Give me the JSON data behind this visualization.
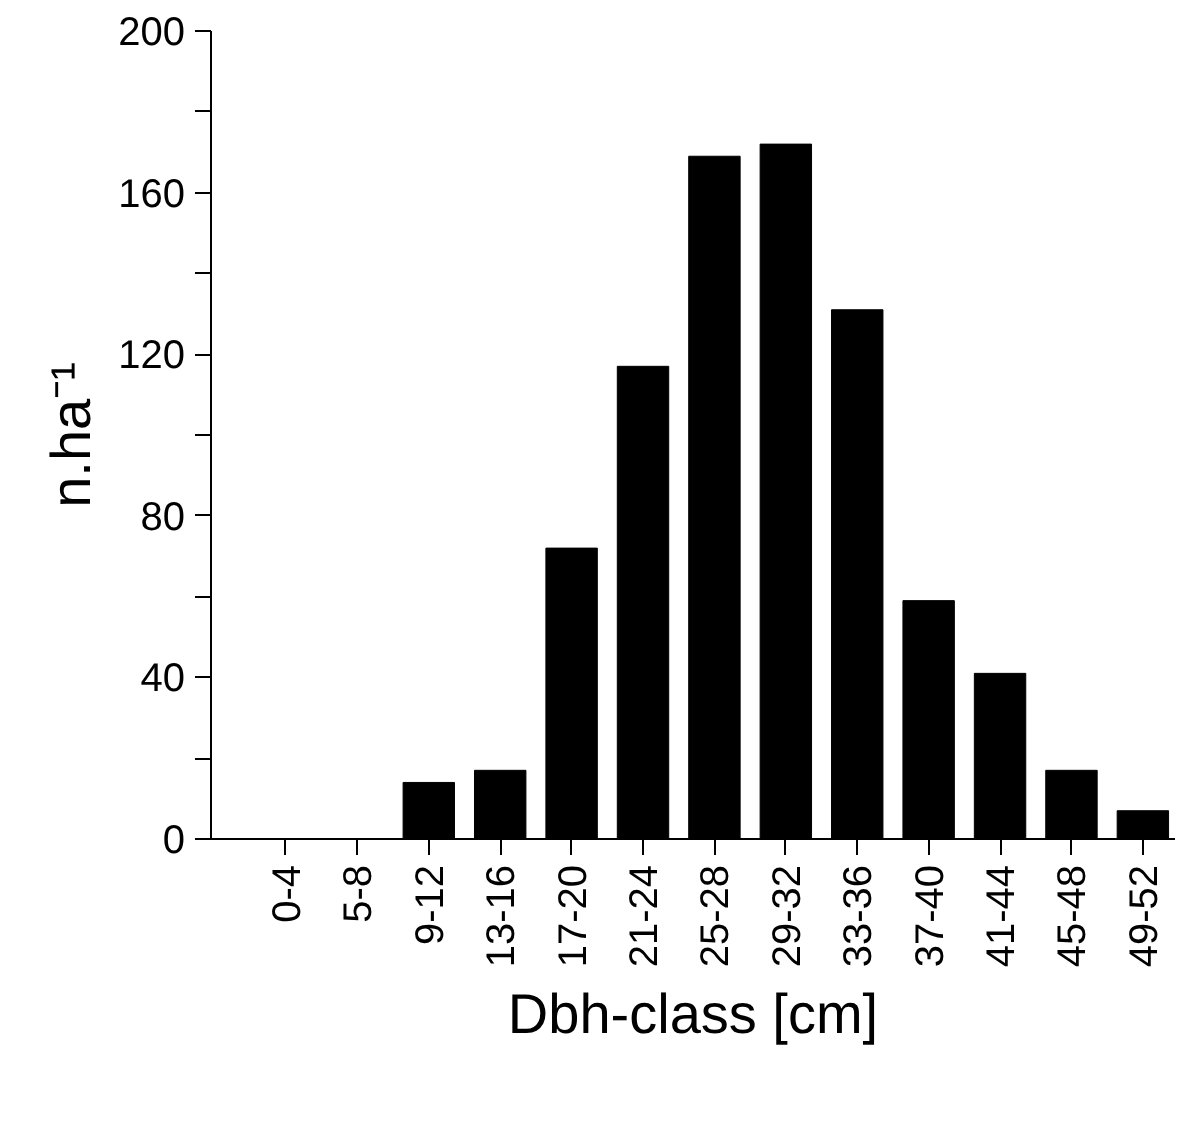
{
  "chart_data": {
    "type": "bar",
    "xlabel": "Dbh-class [cm]",
    "ylabel": "n.ha⁻¹",
    "categories": [
      "0-4",
      "5-8",
      "9-12",
      "13-16",
      "17-20",
      "21-24",
      "25-28",
      "29-32",
      "33-36",
      "37-40",
      "41-44",
      "45-48",
      "49-52"
    ],
    "values": [
      0,
      0,
      14,
      17,
      72,
      117,
      169,
      172,
      131,
      59,
      41,
      17,
      7
    ],
    "color": "#000000",
    "ylim": [
      0,
      200
    ],
    "yticks": [
      0,
      {
        "value": 20,
        "label": null
      },
      40,
      {
        "value": 60,
        "label": null
      },
      80,
      {
        "value": 100,
        "label": null
      },
      120,
      {
        "value": 140,
        "label": null
      },
      160,
      {
        "value": 180,
        "label": null
      },
      200
    ],
    "grid": false
  }
}
